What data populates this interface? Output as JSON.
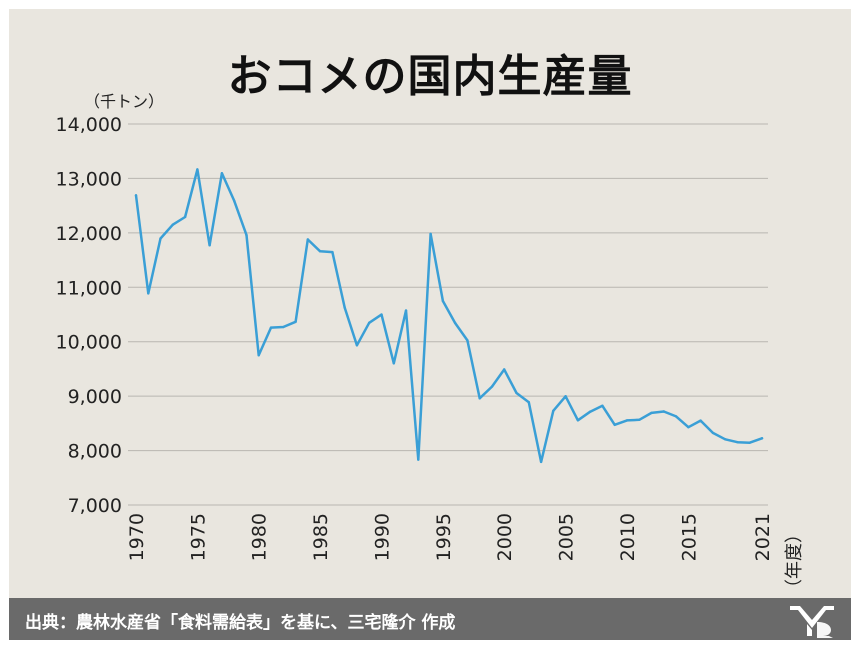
{
  "title": "おコメの国内生産量",
  "unit_label": "（千トン）",
  "source": "出典：農林水産省「食料需給表」を基に、三宅隆介 作成",
  "colors": {
    "line": "#3a9fd6",
    "background": "#e9e6df",
    "footer": "#6a6a6a"
  },
  "chart_data": {
    "type": "line",
    "title": "おコメの国内生産量",
    "ylabel": "（千トン）",
    "xlabel": "（年度）",
    "ylim": [
      7000,
      14000
    ],
    "xlim": [
      1970,
      2021
    ],
    "grid": true,
    "y_ticks": [
      {
        "value": 7000,
        "label": "7,000"
      },
      {
        "value": 8000,
        "label": "8,000"
      },
      {
        "value": 9000,
        "label": "9,000"
      },
      {
        "value": 10000,
        "label": "10,000"
      },
      {
        "value": 11000,
        "label": "11,000"
      },
      {
        "value": 12000,
        "label": "12,000"
      },
      {
        "value": 13000,
        "label": "13,000"
      },
      {
        "value": 14000,
        "label": "14,000"
      }
    ],
    "x_ticks": [
      {
        "value": 1970,
        "label": "1970"
      },
      {
        "value": 1975,
        "label": "1975"
      },
      {
        "value": 1980,
        "label": "1980"
      },
      {
        "value": 1985,
        "label": "1985"
      },
      {
        "value": 1990,
        "label": "1990"
      },
      {
        "value": 1995,
        "label": "1995"
      },
      {
        "value": 2000,
        "label": "2000"
      },
      {
        "value": 2005,
        "label": "2005"
      },
      {
        "value": 2010,
        "label": "2010"
      },
      {
        "value": 2015,
        "label": "2015"
      },
      {
        "value": 2021,
        "label": "2021"
      }
    ],
    "x": [
      1970,
      1971,
      1972,
      1973,
      1974,
      1975,
      1976,
      1977,
      1978,
      1979,
      1980,
      1981,
      1982,
      1983,
      1984,
      1985,
      1986,
      1987,
      1988,
      1989,
      1990,
      1991,
      1992,
      1993,
      1994,
      1995,
      1996,
      1997,
      1998,
      1999,
      2000,
      2001,
      2002,
      2003,
      2004,
      2005,
      2006,
      2007,
      2008,
      2009,
      2010,
      2011,
      2012,
      2013,
      2014,
      2015,
      2016,
      2017,
      2018,
      2019,
      2020,
      2021
    ],
    "series": [
      {
        "values": [
          12689,
          10887,
          11897,
          12149,
          12292,
          13165,
          11772,
          13095,
          12589,
          11958,
          9751,
          10259,
          10270,
          10366,
          11878,
          11662,
          11647,
          10627,
          9935,
          10347,
          10499,
          9604,
          10573,
          7834,
          11981,
          10748,
          10344,
          10025,
          8960,
          9175,
          9490,
          9057,
          8889,
          7792,
          8730,
          8998,
          8556,
          8714,
          8823,
          8474,
          8554,
          8566,
          8692,
          8718,
          8628,
          8429,
          8550,
          8324,
          8208,
          8154,
          8145,
          8226
        ]
      }
    ]
  }
}
